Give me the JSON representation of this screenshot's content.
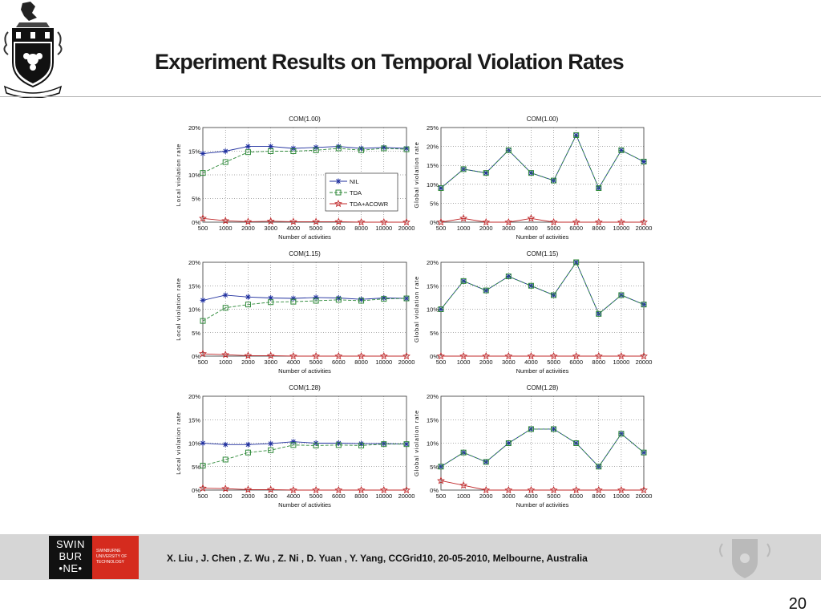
{
  "slide": {
    "title": "Experiment Results on Temporal Violation Rates",
    "citation": "X. Liu , J. Chen , Z. Wu , Z. Ni , D. Yuan , Y. Yang, CCGrid10, 20-05-2010, Melbourne, Australia",
    "page_number": "20",
    "logo": {
      "text_lines": [
        "SWIN",
        "BUR",
        "•NE•"
      ],
      "tagline": [
        "SWINBURNE",
        "UNIVERSITY OF",
        "TECHNOLOGY"
      ]
    }
  },
  "colors": {
    "nil": "#1f2f9e",
    "tda": "#2f8a3a",
    "tda_acowr": "#c0282a",
    "swinburne_red": "#d52b1e"
  },
  "chart_data": [
    {
      "type": "line",
      "title": "COM(1.00)",
      "xlabel": "Number of activities",
      "ylabel": "Local violation rate",
      "categories": [
        "500",
        "1000",
        "2000",
        "3000",
        "4000",
        "5000",
        "6000",
        "8000",
        "10000",
        "20000"
      ],
      "ylim": [
        0,
        20
      ],
      "yticks": [
        "0%",
        "5%",
        "10%",
        "15%",
        "20%"
      ],
      "grid": true,
      "legend": "center-right",
      "series": [
        {
          "name": "NIL",
          "marker": "asterisk",
          "color": "#1f2f9e",
          "values": [
            14.5,
            15.0,
            16.0,
            16.0,
            15.6,
            15.8,
            16.0,
            15.6,
            15.8,
            15.6
          ]
        },
        {
          "name": "TDA",
          "marker": "square",
          "color": "#2f8a3a",
          "values": [
            10.4,
            12.7,
            14.8,
            15.0,
            15.0,
            15.2,
            15.6,
            15.2,
            15.6,
            15.4
          ]
        },
        {
          "name": "TDA+ACOWR",
          "marker": "star",
          "color": "#c0282a",
          "values": [
            0.8,
            0.3,
            0.1,
            0.2,
            0.1,
            0.1,
            0.1,
            0.0,
            0.0,
            0.0
          ]
        }
      ]
    },
    {
      "type": "line",
      "title": "COM(1.00)",
      "xlabel": "Number of activities",
      "ylabel": "Global violation rate",
      "categories": [
        "500",
        "1000",
        "2000",
        "3000",
        "4000",
        "5000",
        "6000",
        "8000",
        "10000",
        "20000"
      ],
      "ylim": [
        0,
        25
      ],
      "yticks": [
        "0%",
        "5%",
        "10%",
        "15%",
        "20%",
        "25%"
      ],
      "grid": true,
      "series": [
        {
          "name": "NIL",
          "marker": "asterisk",
          "color": "#1f2f9e",
          "values": [
            9,
            14,
            13,
            19,
            13,
            11,
            23,
            9,
            19,
            16
          ]
        },
        {
          "name": "TDA",
          "marker": "square",
          "color": "#2f8a3a",
          "values": [
            9,
            14,
            13,
            19,
            13,
            11,
            23,
            9,
            19,
            16
          ]
        },
        {
          "name": "TDA+ACOWR",
          "marker": "star",
          "color": "#c0282a",
          "values": [
            0,
            1,
            0,
            0,
            1,
            0,
            0,
            0,
            0,
            0
          ]
        }
      ]
    },
    {
      "type": "line",
      "title": "COM(1.15)",
      "xlabel": "Number of activities",
      "ylabel": "Local violation rate",
      "categories": [
        "500",
        "1000",
        "2000",
        "3000",
        "4000",
        "5000",
        "6000",
        "8000",
        "10000",
        "20000"
      ],
      "ylim": [
        0,
        20
      ],
      "yticks": [
        "0%",
        "5%",
        "10%",
        "15%",
        "20%"
      ],
      "grid": true,
      "series": [
        {
          "name": "NIL",
          "marker": "asterisk",
          "color": "#1f2f9e",
          "values": [
            11.9,
            13.0,
            12.6,
            12.4,
            12.3,
            12.5,
            12.4,
            12.1,
            12.4,
            12.3
          ]
        },
        {
          "name": "TDA",
          "marker": "square",
          "color": "#2f8a3a",
          "values": [
            7.5,
            10.3,
            11.0,
            11.5,
            11.6,
            11.8,
            12.0,
            11.8,
            12.2,
            12.3
          ]
        },
        {
          "name": "TDA+ACOWR",
          "marker": "star",
          "color": "#c0282a",
          "values": [
            0.5,
            0.3,
            0.1,
            0.1,
            0.0,
            0.0,
            0.0,
            0.0,
            0.0,
            0.0
          ]
        }
      ]
    },
    {
      "type": "line",
      "title": "COM(1.15)",
      "xlabel": "Number of activities",
      "ylabel": "Global violation rate",
      "categories": [
        "500",
        "1000",
        "2000",
        "3000",
        "4000",
        "5000",
        "6000",
        "8000",
        "10000",
        "20000"
      ],
      "ylim": [
        0,
        20
      ],
      "yticks": [
        "0%",
        "5%",
        "10%",
        "15%",
        "20%"
      ],
      "grid": true,
      "series": [
        {
          "name": "NIL",
          "marker": "asterisk",
          "color": "#1f2f9e",
          "values": [
            10,
            16,
            14,
            17,
            15,
            13,
            20,
            9,
            13,
            11
          ]
        },
        {
          "name": "TDA",
          "marker": "square",
          "color": "#2f8a3a",
          "values": [
            10,
            16,
            14,
            17,
            15,
            13,
            20,
            9,
            13,
            11
          ]
        },
        {
          "name": "TDA+ACOWR",
          "marker": "star",
          "color": "#c0282a",
          "values": [
            0,
            0,
            0,
            0,
            0,
            0,
            0,
            0,
            0,
            0
          ]
        }
      ]
    },
    {
      "type": "line",
      "title": "COM(1.28)",
      "xlabel": "Number of activities",
      "ylabel": "Local violation rate",
      "categories": [
        "500",
        "1000",
        "2000",
        "3000",
        "4000",
        "5000",
        "6000",
        "8000",
        "10000",
        "20000"
      ],
      "ylim": [
        0,
        20
      ],
      "yticks": [
        "0%",
        "5%",
        "10%",
        "15%",
        "20%"
      ],
      "grid": true,
      "series": [
        {
          "name": "NIL",
          "marker": "asterisk",
          "color": "#1f2f9e",
          "values": [
            10.0,
            9.7,
            9.7,
            9.9,
            10.3,
            10.0,
            10.0,
            9.9,
            9.9,
            9.8
          ]
        },
        {
          "name": "TDA",
          "marker": "square",
          "color": "#2f8a3a",
          "values": [
            5.2,
            6.5,
            8.0,
            8.5,
            9.6,
            9.5,
            9.6,
            9.5,
            9.8,
            9.8
          ]
        },
        {
          "name": "TDA+ACOWR",
          "marker": "star",
          "color": "#c0282a",
          "values": [
            0.4,
            0.3,
            0.1,
            0.1,
            0.0,
            0.0,
            0.0,
            0.0,
            0.0,
            0.0
          ]
        }
      ]
    },
    {
      "type": "line",
      "title": "COM(1.28)",
      "xlabel": "Number of activities",
      "ylabel": "Global violation rate",
      "categories": [
        "500",
        "1000",
        "2000",
        "3000",
        "4000",
        "5000",
        "6000",
        "8000",
        "10000",
        "20000"
      ],
      "ylim": [
        0,
        20
      ],
      "yticks": [
        "0%",
        "5%",
        "10%",
        "15%",
        "20%"
      ],
      "grid": true,
      "series": [
        {
          "name": "NIL",
          "marker": "asterisk",
          "color": "#1f2f9e",
          "values": [
            5,
            8,
            6,
            10,
            13,
            13,
            10,
            5,
            12,
            8
          ]
        },
        {
          "name": "TDA",
          "marker": "square",
          "color": "#2f8a3a",
          "values": [
            5,
            8,
            6,
            10,
            13,
            13,
            10,
            5,
            12,
            8
          ]
        },
        {
          "name": "TDA+ACOWR",
          "marker": "star",
          "color": "#c0282a",
          "values": [
            2,
            1,
            0,
            0,
            0,
            0,
            0,
            0,
            0,
            0
          ]
        }
      ]
    }
  ]
}
